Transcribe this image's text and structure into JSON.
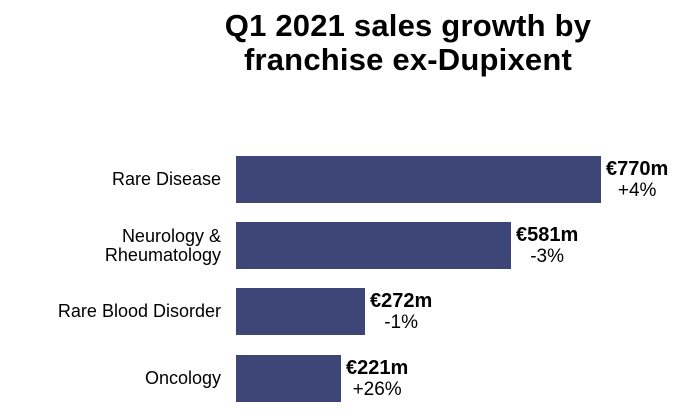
{
  "title": {
    "line1": "Q1 2021 sales growth by",
    "line2": "franchise ex-Dupixent"
  },
  "colors": {
    "bar": "#3E4677",
    "text": "#000000",
    "background": "#FFFFFF"
  },
  "chart_data": {
    "type": "bar",
    "orientation": "horizontal",
    "title": "Q1 2021 sales growth by franchise ex-Dupixent",
    "unit": "EUR millions",
    "categories": [
      "Rare Disease",
      "Neurology & Rheumatology",
      "Rare Blood Disorder",
      "Oncology"
    ],
    "category_label_lines": [
      [
        "Rare Disease"
      ],
      [
        "Neurology &",
        "Rheumatology"
      ],
      [
        "Rare Blood Disorder"
      ],
      [
        "Oncology"
      ]
    ],
    "series": [
      {
        "name": "Q1 2021 sales",
        "values": [
          770,
          581,
          272,
          221
        ]
      }
    ],
    "value_labels": [
      "€770m",
      "€581m",
      "€272m",
      "€221m"
    ],
    "growth_labels": [
      "+4%",
      "-3%",
      "-1%",
      "+26%"
    ],
    "growth_pct": [
      4,
      -3,
      -1,
      26
    ],
    "xlim": [
      0,
      770
    ],
    "grid": false,
    "legend": "none",
    "bar_color": "#3E4677"
  }
}
